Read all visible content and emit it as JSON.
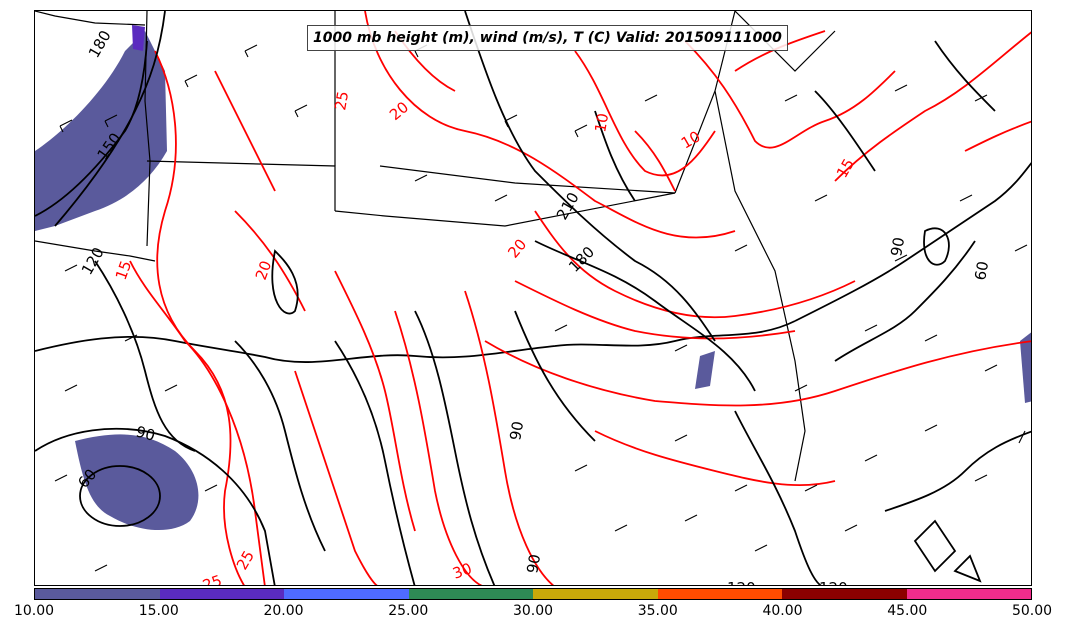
{
  "title": "1000 mb height (m), wind (m/s), T (C) Valid: 201509111000",
  "colorbar": {
    "colors": [
      "#5a5a9c",
      "#5a2bbf",
      "#4f6bff",
      "#2e8a55",
      "#c9a90a",
      "#ff4c00",
      "#8b0000",
      "#f02c8c"
    ],
    "ticks": [
      "10.00",
      "15.00",
      "20.00",
      "25.00",
      "30.00",
      "35.00",
      "40.00",
      "45.00",
      "50.00"
    ]
  },
  "height_labels": [
    "180",
    "150",
    "120",
    "60",
    "90",
    "180",
    "120",
    "120",
    "90",
    "90",
    "60",
    "90",
    "210"
  ],
  "temp_labels": [
    "25",
    "20",
    "15",
    "10",
    "15",
    "25",
    "20",
    "25",
    "30",
    "20",
    "10"
  ]
}
